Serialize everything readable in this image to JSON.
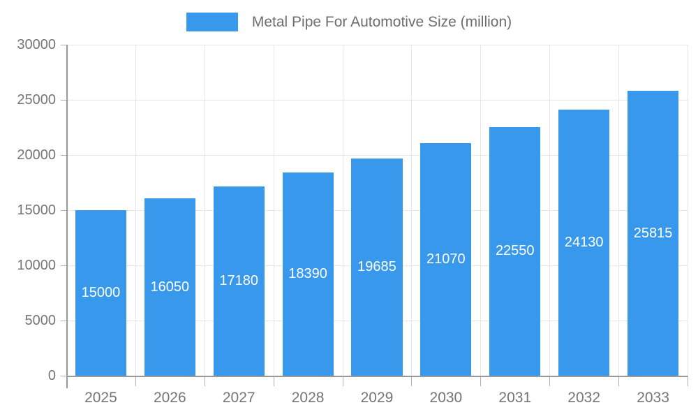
{
  "legend": {
    "label": "Metal Pipe For Automotive Size (million)"
  },
  "chart_data": {
    "type": "bar",
    "title": "Metal Pipe For Automotive Size (million)",
    "series_name": "Metal Pipe For Automotive Size (million)",
    "categories": [
      "2025",
      "2026",
      "2027",
      "2028",
      "2029",
      "2030",
      "2031",
      "2032",
      "2033"
    ],
    "values": [
      15000,
      16050,
      17180,
      18390,
      19685,
      21070,
      22550,
      24130,
      25815
    ],
    "bar_labels": [
      "15000",
      "16050",
      "17180",
      "18390",
      "19685",
      "21070",
      "22550",
      "24130",
      "25815"
    ],
    "xlabel": "",
    "ylabel": "",
    "ylim": [
      0,
      30000
    ],
    "y_tick_step": 5000,
    "y_tick_labels": [
      "0",
      "5000",
      "10000",
      "15000",
      "20000",
      "25000",
      "30000"
    ],
    "grid": true,
    "legend_position": "top",
    "bar_label_position": "middle",
    "colors": {
      "bar": "#3899ec",
      "bar_label": "#ffffff",
      "axis_line": "#999999",
      "grid_line": "#e6e6e6",
      "tick_line": "#b0b0b0",
      "axis_text": "#757575",
      "legend_text": "#6e6e6e",
      "background": "#ffffff"
    }
  }
}
